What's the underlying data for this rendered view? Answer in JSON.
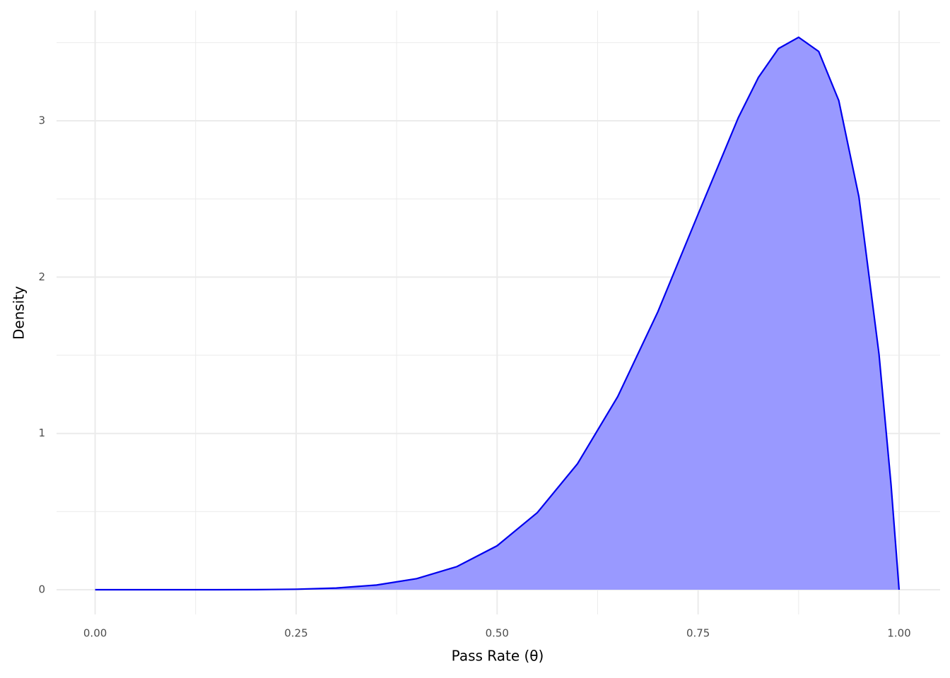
{
  "chart_data": {
    "type": "area",
    "x_label": "Pass Rate (θ)",
    "y_label": "Density",
    "x": [
      0,
      0.05,
      0.1,
      0.15,
      0.2,
      0.25,
      0.3,
      0.35,
      0.4,
      0.45,
      0.5,
      0.55,
      0.6,
      0.65,
      0.7,
      0.75,
      0.8,
      0.825,
      0.85,
      0.875,
      0.9,
      0.925,
      0.95,
      0.975,
      0.99,
      1
    ],
    "values": [
      0,
      0,
      0,
      0.0001,
      0.0007,
      0.0033,
      0.011,
      0.0301,
      0.0708,
      0.148,
      0.2813,
      0.4933,
      0.8062,
      1.2354,
      1.7789,
      2.4027,
      3.0199,
      3.2775,
      3.4622,
      3.5343,
      3.4437,
      3.1289,
      2.514,
      1.5077,
      0.6711,
      0
    ],
    "line_color": "#0000ee",
    "fill_color": "#9999ff",
    "xlim": [
      -0.048,
      1.051
    ],
    "ylim": [
      -0.158,
      3.705
    ],
    "xticks": [
      {
        "value": 0,
        "label": "0.00"
      },
      {
        "value": 0.25,
        "label": "0.25"
      },
      {
        "value": 0.5,
        "label": "0.50"
      },
      {
        "value": 0.75,
        "label": "0.75"
      },
      {
        "value": 1,
        "label": "1.00"
      }
    ],
    "yticks": [
      0,
      1,
      2,
      3
    ],
    "x_minor_grid": [
      0.125,
      0.375,
      0.625,
      0.875
    ],
    "y_minor_grid": [
      0.5,
      1.5,
      2.5,
      3.5
    ],
    "grid": true
  }
}
